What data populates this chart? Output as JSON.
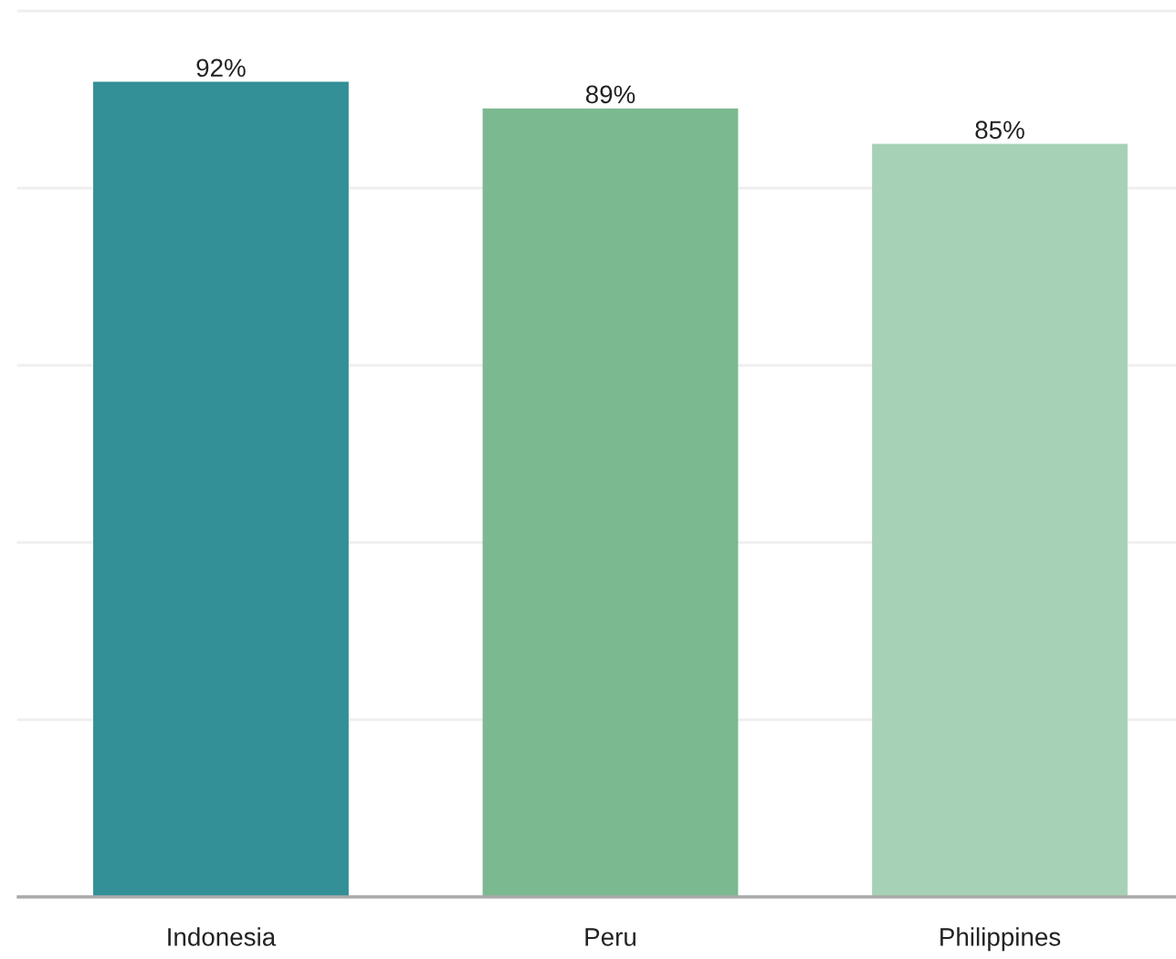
{
  "chart_data": {
    "type": "bar",
    "categories": [
      "Indonesia",
      "Peru",
      "Philippines"
    ],
    "values": [
      92,
      89,
      85
    ],
    "colors": [
      "#339096",
      "#7bb990",
      "#a6d1b6"
    ],
    "value_labels": [
      "92%",
      "89%",
      "85%"
    ],
    "ylim": [
      0,
      100
    ],
    "yticks": [
      {
        "value": 0,
        "label": null
      },
      {
        "value": 20,
        "label": null
      },
      {
        "value": 40,
        "label": null
      },
      {
        "value": 60,
        "label": null
      },
      {
        "value": 80,
        "label": null
      },
      {
        "value": 100,
        "label": null
      }
    ],
    "grid": "y",
    "tick_labels": "x"
  }
}
